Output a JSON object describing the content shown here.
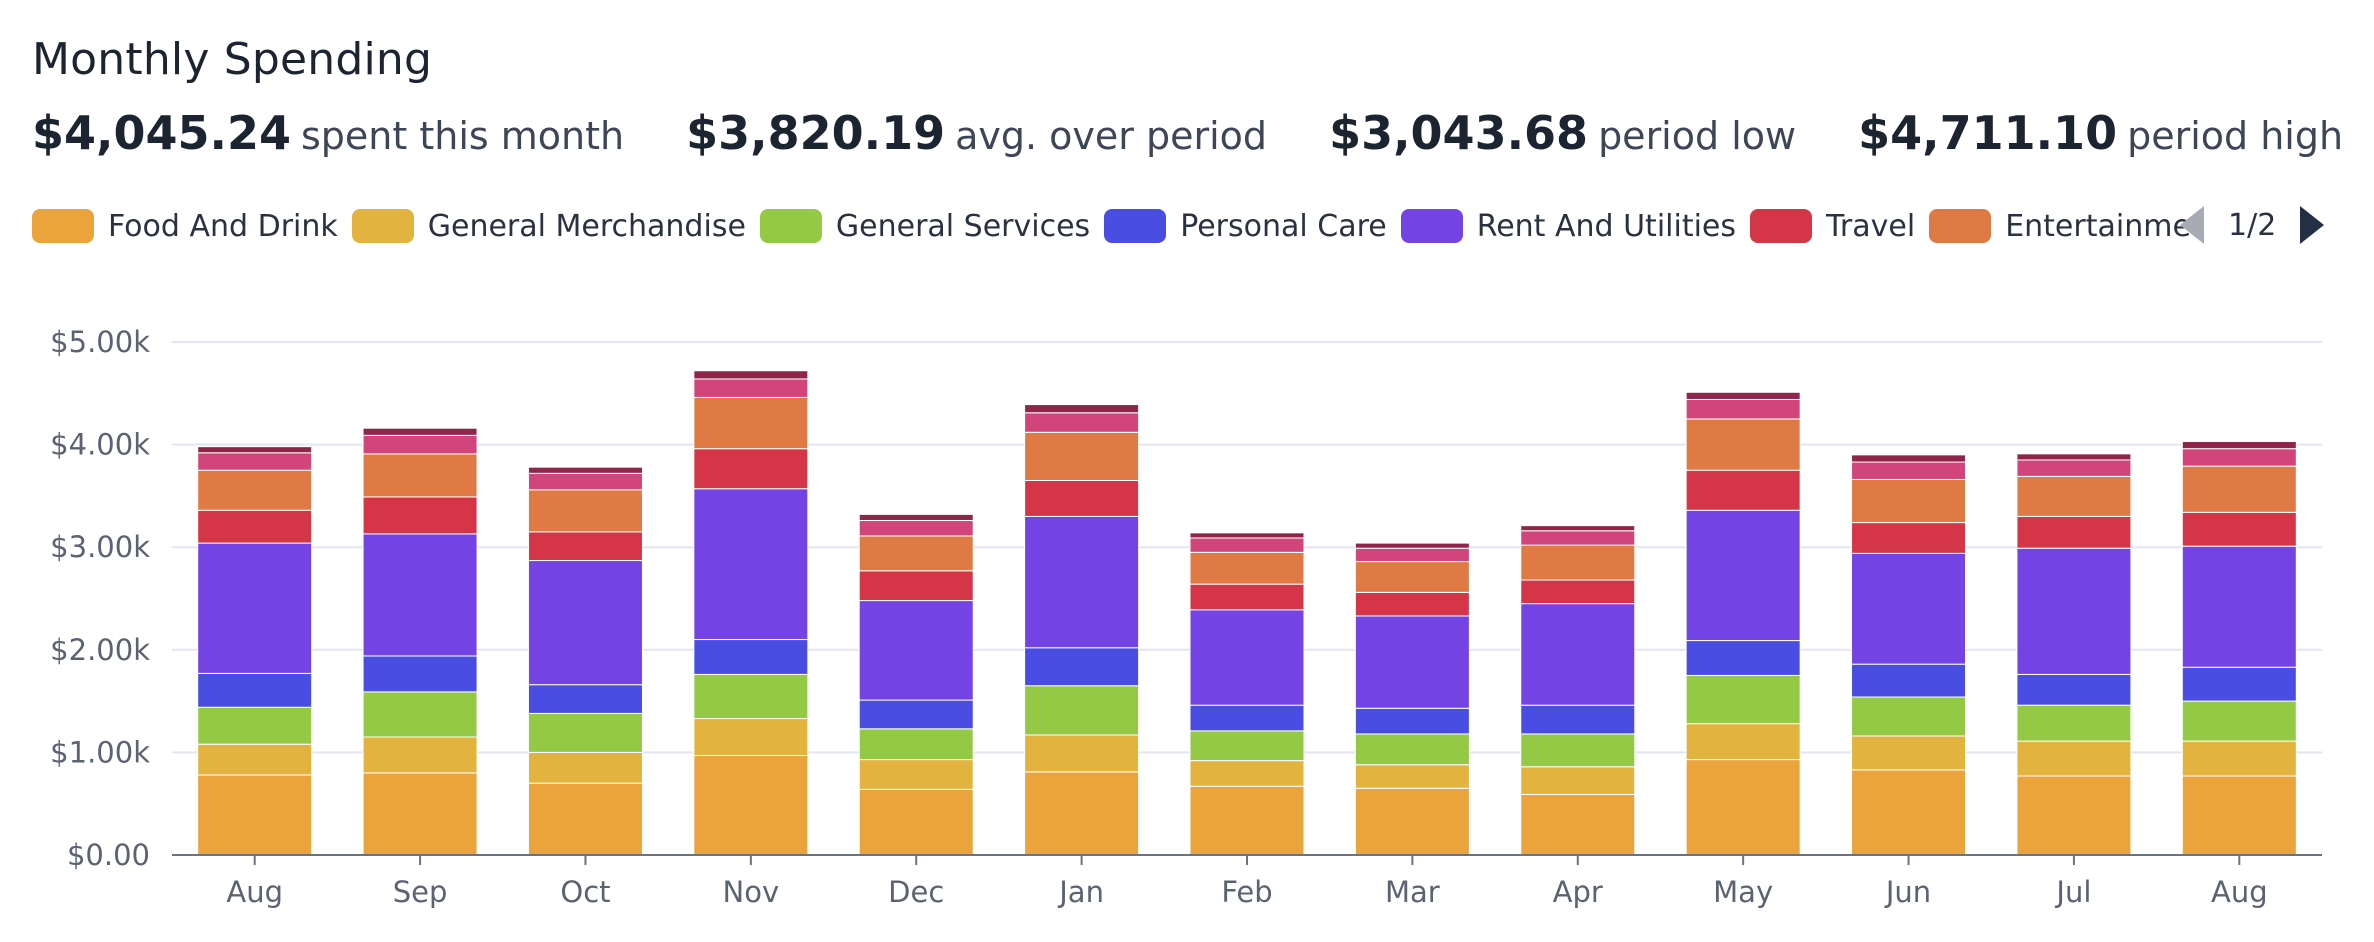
{
  "header": {
    "title": "Monthly Spending",
    "stats": [
      {
        "value": "$4,045.24",
        "label": "spent this month"
      },
      {
        "value": "$3,820.19",
        "label": "avg. over period"
      },
      {
        "value": "$3,043.68",
        "label": "period low"
      },
      {
        "value": "$4,711.10",
        "label": "period high"
      }
    ]
  },
  "legend": {
    "page_label": "1/2",
    "prev_icon": "triangle-left-icon",
    "next_icon": "triangle-right-icon"
  },
  "chart_data": {
    "type": "bar",
    "stacked": true,
    "categories": [
      "Aug",
      "Sep",
      "Oct",
      "Nov",
      "Dec",
      "Jan",
      "Feb",
      "Mar",
      "Apr",
      "May",
      "Jun",
      "Jul",
      "Aug"
    ],
    "y_ticks": [
      "$0.00",
      "$1.00k",
      "$2.00k",
      "$3.00k",
      "$4.00k",
      "$5.00k"
    ],
    "ylim": [
      0,
      5000
    ],
    "grid": true,
    "legend_position": "top",
    "series": [
      {
        "name": "Food And Drink",
        "color": "#eba33c",
        "values": [
          780,
          800,
          700,
          970,
          640,
          810,
          670,
          650,
          590,
          930,
          830,
          770,
          770
        ]
      },
      {
        "name": "General Merchandise",
        "color": "#e3b33f",
        "values": [
          300,
          350,
          300,
          360,
          290,
          360,
          250,
          230,
          270,
          350,
          330,
          340,
          340
        ]
      },
      {
        "name": "General Services",
        "color": "#93c944",
        "values": [
          360,
          440,
          380,
          430,
          300,
          480,
          290,
          300,
          320,
          470,
          380,
          350,
          390
        ]
      },
      {
        "name": "Personal Care",
        "color": "#4a4de1",
        "values": [
          330,
          350,
          280,
          340,
          280,
          370,
          250,
          250,
          280,
          340,
          320,
          300,
          330
        ]
      },
      {
        "name": "Rent And Utilities",
        "color": "#7344e3",
        "values": [
          1270,
          1190,
          1210,
          1470,
          970,
          1280,
          930,
          900,
          990,
          1270,
          1080,
          1230,
          1180
        ]
      },
      {
        "name": "Travel",
        "color": "#d43648",
        "values": [
          320,
          360,
          280,
          390,
          290,
          350,
          250,
          230,
          230,
          390,
          300,
          310,
          330
        ]
      },
      {
        "name": "Entertainment",
        "color": "#e07a45",
        "values": [
          390,
          420,
          410,
          500,
          340,
          470,
          310,
          300,
          340,
          500,
          420,
          390,
          450
        ]
      },
      {
        "name": "",
        "color": "#d1457a",
        "values": [
          170,
          180,
          160,
          180,
          150,
          190,
          140,
          130,
          140,
          190,
          170,
          160,
          170
        ]
      },
      {
        "name": "",
        "color": "#8f2549",
        "values": [
          60,
          70,
          60,
          80,
          60,
          80,
          50,
          50,
          50,
          70,
          70,
          60,
          70
        ]
      }
    ]
  }
}
